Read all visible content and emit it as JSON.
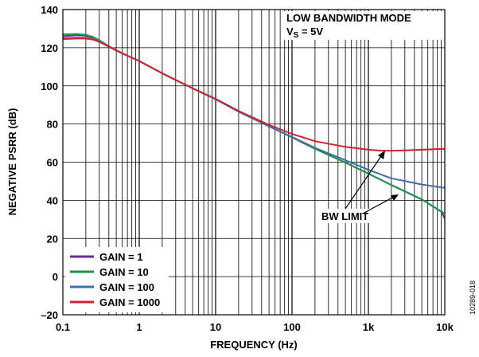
{
  "figure_id": "10289-018",
  "chart_data": {
    "type": "line",
    "title": "",
    "xlabel": "FREQUENCY (Hz)",
    "ylabel": "NEGATIVE PSRR (dB)",
    "xscale": "log",
    "xlim": [
      0.1,
      10000
    ],
    "ylim": [
      -20,
      140
    ],
    "grid": true,
    "x_ticks": [
      {
        "value": 0.1,
        "label": "0.1"
      },
      {
        "value": 1,
        "label": "1"
      },
      {
        "value": 10,
        "label": "10"
      },
      {
        "value": 100,
        "label": "100"
      },
      {
        "value": 1000,
        "label": "1k"
      },
      {
        "value": 10000,
        "label": "10k"
      }
    ],
    "y_ticks": [
      {
        "value": -20,
        "label": "–20"
      },
      {
        "value": 0,
        "label": "0"
      },
      {
        "value": 20,
        "label": "20"
      },
      {
        "value": 40,
        "label": "40"
      },
      {
        "value": 60,
        "label": "60"
      },
      {
        "value": 80,
        "label": "80"
      },
      {
        "value": 100,
        "label": "100"
      },
      {
        "value": 120,
        "label": "120"
      },
      {
        "value": 140,
        "label": "140"
      }
    ],
    "annotations": {
      "mode_line1": "LOW BANDWIDTH MODE",
      "mode_line2_prefix": "V",
      "mode_line2_sub": "S",
      "mode_line2_suffix": " = 5V",
      "bw_limit": "BW LIMIT"
    },
    "legend_position": "bottom-left",
    "series": [
      {
        "name": "GAIN = 1",
        "color": "#6a2c91",
        "x": [
          0.1,
          0.15,
          0.2,
          0.25,
          0.3,
          0.4,
          0.5,
          0.7,
          1,
          2,
          5,
          10,
          20,
          50,
          100,
          200,
          500,
          1000,
          2000,
          5000,
          9000,
          10000
        ],
        "y": [
          126,
          126.5,
          126.3,
          125.3,
          123.8,
          120.8,
          118.7,
          115.8,
          113,
          106.6,
          98.7,
          93,
          86.5,
          78.8,
          73,
          67,
          59.8,
          54,
          48,
          40.5,
          34,
          30.5
        ]
      },
      {
        "name": "GAIN = 10",
        "color": "#1a9648",
        "x": [
          0.1,
          0.15,
          0.2,
          0.25,
          0.3,
          0.4,
          0.5,
          0.7,
          1,
          2,
          5,
          10,
          20,
          50,
          100,
          200,
          500,
          1000,
          2000,
          5000,
          10000
        ],
        "y": [
          127,
          127.2,
          126.8,
          125.6,
          123.9,
          120.8,
          118.7,
          115.8,
          113,
          106.6,
          98.7,
          93,
          86.5,
          78.8,
          73,
          67,
          59.8,
          54,
          48,
          40.5,
          33
        ]
      },
      {
        "name": "GAIN = 100",
        "color": "#3f6fae",
        "x": [
          0.1,
          0.15,
          0.2,
          0.25,
          0.3,
          0.4,
          0.5,
          0.7,
          1,
          2,
          5,
          10,
          20,
          50,
          100,
          200,
          500,
          1000,
          2000,
          5000,
          10000
        ],
        "y": [
          125,
          125.3,
          125.2,
          124.6,
          123.3,
          120.6,
          118.6,
          115.8,
          113,
          106.6,
          98.7,
          93,
          86.5,
          78.8,
          73.2,
          67.5,
          61,
          56,
          51.5,
          48.3,
          46.5
        ]
      },
      {
        "name": "GAIN = 1000",
        "color": "#d3202f",
        "x": [
          0.1,
          0.15,
          0.2,
          0.25,
          0.3,
          0.4,
          0.5,
          0.7,
          1,
          2,
          5,
          10,
          20,
          50,
          100,
          200,
          500,
          1000,
          1500,
          2000,
          3000,
          5000,
          10000
        ],
        "y": [
          124.5,
          124.8,
          124.8,
          124.2,
          123.1,
          120.5,
          118.5,
          115.8,
          113,
          106.6,
          98.7,
          93.2,
          86.8,
          79.5,
          74.8,
          71,
          68,
          66.5,
          66,
          66,
          66.2,
          66.5,
          67
        ]
      }
    ]
  }
}
